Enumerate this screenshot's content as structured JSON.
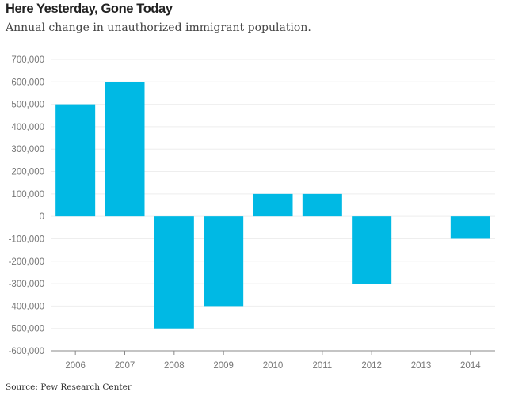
{
  "header": {
    "title": "Here Yesterday, Gone Today",
    "subtitle": "Annual change in unauthorized immigrant population."
  },
  "footer": {
    "source": "Source: Pew Research Center"
  },
  "colors": {
    "bar": "#00b9e4",
    "grid": "#eeeeee",
    "axis": "#888888"
  },
  "chart_data": {
    "type": "bar",
    "title": "Here Yesterday, Gone Today",
    "subtitle": "Annual change in unauthorized immigrant population.",
    "xlabel": "",
    "ylabel": "",
    "categories": [
      "2006",
      "2007",
      "2008",
      "2009",
      "2010",
      "2011",
      "2012",
      "2013",
      "2014"
    ],
    "values": [
      500000,
      600000,
      -500000,
      -400000,
      100000,
      100000,
      -300000,
      0,
      -100000
    ],
    "ylim": [
      -600000,
      700000
    ],
    "yticks": [
      700000,
      600000,
      500000,
      400000,
      300000,
      200000,
      100000,
      0,
      -100000,
      -200000,
      -300000,
      -400000,
      -500000,
      -600000
    ],
    "ytick_labels": [
      "700,000",
      "600,000",
      "500,000",
      "400,000",
      "300,000",
      "200,000",
      "100,000",
      "0",
      "-100,000",
      "-200,000",
      "-300,000",
      "-400,000",
      "-500,000",
      "-600,000"
    ],
    "grid": true,
    "legend": "none",
    "source": "Source: Pew Research Center"
  }
}
